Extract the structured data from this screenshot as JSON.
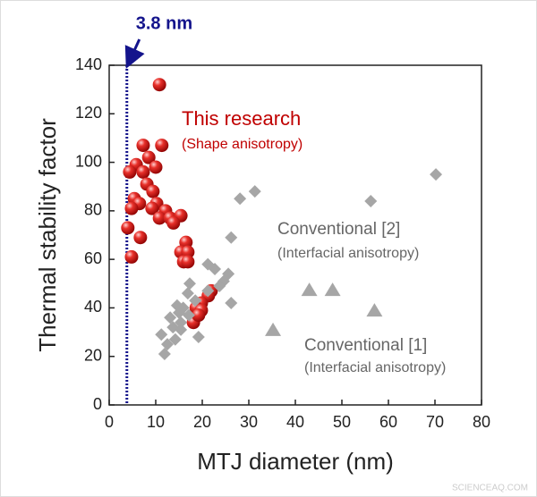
{
  "chart_data": {
    "type": "scatter",
    "x_label": "MTJ diameter (nm)",
    "y_label": "Thermal stability factor",
    "xlim": [
      0,
      80
    ],
    "xticks": [
      0,
      10,
      20,
      30,
      40,
      50,
      60,
      70,
      80
    ],
    "ylim": [
      0,
      140
    ],
    "yticks": [
      0,
      20,
      40,
      60,
      80,
      100,
      120,
      140
    ],
    "marker_line": {
      "x": 3.8,
      "label": "3.8 nm",
      "color": "#14148c"
    },
    "series": [
      {
        "name": "This research",
        "note": "(Shape anisotropy)",
        "color": "#e01b1b",
        "marker": "sphere",
        "x": [
          10.8,
          7.3,
          11.3,
          8.5,
          5.8,
          4.4,
          10,
          7.3,
          8.1,
          9.4,
          5.4,
          6.5,
          4.8,
          10.2,
          9.2,
          12.1,
          10.8,
          13.1,
          15.4,
          13.8,
          4,
          6.7,
          16.5,
          15.4,
          16.9,
          16,
          4.8,
          16.9,
          21.9,
          21.3,
          19.8,
          18.7,
          19.8,
          18.1,
          19.2
        ],
        "values": [
          132,
          107,
          107,
          102,
          99,
          96,
          98,
          96,
          91,
          88,
          85,
          83,
          81,
          83,
          81,
          80,
          77,
          77,
          78,
          75,
          73,
          69,
          67,
          63,
          63,
          59,
          61,
          59,
          47,
          45,
          42,
          40,
          39,
          34,
          37
        ]
      },
      {
        "name": "Conventional [2]",
        "note": "(Interfacial anisotropy)",
        "color": "#a6a6a6",
        "marker": "diamond",
        "x": [
          70.2,
          56.2,
          28.1,
          31.3,
          26.2,
          21.2,
          22.7,
          25.6,
          24.6,
          17.3,
          23.7,
          21.2,
          16.9,
          18.5,
          26.2,
          14.6,
          15.9,
          15,
          17.1,
          13.1,
          15.4,
          13.7,
          15.4,
          19.2,
          11.2,
          14.2,
          12.5,
          11.9
        ],
        "values": [
          95,
          84,
          85,
          88,
          69,
          58,
          56,
          54,
          51,
          50,
          49,
          47,
          46,
          43,
          42,
          41,
          40,
          38,
          37,
          36,
          34,
          32,
          31,
          28,
          29,
          27,
          25,
          21
        ]
      },
      {
        "name": "Conventional [1]",
        "note": "(Interfacial anisotropy)",
        "color": "#a6a6a6",
        "marker": "triangle",
        "x": [
          35.2,
          43,
          48,
          57
        ],
        "values": [
          31,
          47.5,
          47.5,
          39
        ]
      }
    ]
  },
  "watermark": "SCIENCEAQ.COM"
}
